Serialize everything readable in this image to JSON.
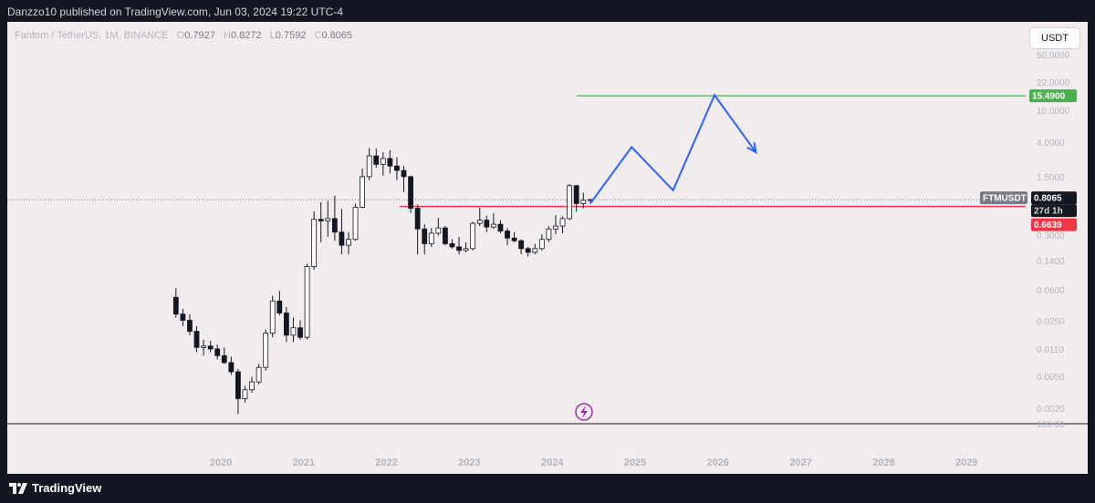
{
  "header": {
    "published": "Danzzo10 published on TradingView.com, Jun 03, 2024 19:22 UTC-4"
  },
  "symbol": {
    "description": "Fantom / TetherUS, 1M, BINANCE",
    "o_label": "O",
    "o_value": "0.7927",
    "h_label": "H",
    "h_value": "0.8272",
    "l_label": "L",
    "l_value": "0.7592",
    "c_label": "C",
    "c_value": "0.8065"
  },
  "currency": "USDT",
  "price_tags": {
    "target": "15.4900",
    "ticker": "FTMUSDT",
    "last": "0.8065",
    "countdown": "27d 1h",
    "support": "0.6639"
  },
  "colors": {
    "target_line": "#4caf50",
    "support_line": "#f23645",
    "projection": "#2962ff",
    "candle_down": "#131722",
    "candle_up": "#ffffff"
  },
  "footer": {
    "brand": "TradingView"
  },
  "chart_data": {
    "type": "candlestick",
    "symbol": "FTMUSDT",
    "interval": "1M",
    "y_scale": "log",
    "y_ticks": [
      "50.0000",
      "22.0000",
      "10.0000",
      "4.0000",
      "1.5000",
      "0.3000",
      "0.1400",
      "0.0600",
      "0.0250",
      "0.0110",
      "0.0050",
      "0.0020",
      "100.00"
    ],
    "x_ticks": [
      "2020",
      "2021",
      "2022",
      "2023",
      "2024",
      "2025",
      "2026",
      "2027",
      "2028",
      "2029"
    ],
    "candles": [
      {
        "t": "2019-06",
        "o": 0.05,
        "h": 0.065,
        "l": 0.028,
        "c": 0.031
      },
      {
        "t": "2019-07",
        "o": 0.031,
        "h": 0.036,
        "l": 0.022,
        "c": 0.026
      },
      {
        "t": "2019-08",
        "o": 0.026,
        "h": 0.031,
        "l": 0.017,
        "c": 0.019
      },
      {
        "t": "2019-09",
        "o": 0.019,
        "h": 0.022,
        "l": 0.0105,
        "c": 0.012
      },
      {
        "t": "2019-10",
        "o": 0.012,
        "h": 0.015,
        "l": 0.0095,
        "c": 0.0125
      },
      {
        "t": "2019-11",
        "o": 0.0125,
        "h": 0.0145,
        "l": 0.0105,
        "c": 0.0115
      },
      {
        "t": "2019-12",
        "o": 0.0115,
        "h": 0.013,
        "l": 0.0085,
        "c": 0.0095
      },
      {
        "t": "2020-01",
        "o": 0.0095,
        "h": 0.012,
        "l": 0.0075,
        "c": 0.0078
      },
      {
        "t": "2020-02",
        "o": 0.0078,
        "h": 0.0092,
        "l": 0.0055,
        "c": 0.006
      },
      {
        "t": "2020-03",
        "o": 0.006,
        "h": 0.0065,
        "l": 0.0018,
        "c": 0.0028
      },
      {
        "t": "2020-04",
        "o": 0.0028,
        "h": 0.004,
        "l": 0.0025,
        "c": 0.0036
      },
      {
        "t": "2020-05",
        "o": 0.0036,
        "h": 0.0052,
        "l": 0.0033,
        "c": 0.0045
      },
      {
        "t": "2020-06",
        "o": 0.0045,
        "h": 0.0075,
        "l": 0.0042,
        "c": 0.0068
      },
      {
        "t": "2020-07",
        "o": 0.0068,
        "h": 0.02,
        "l": 0.0062,
        "c": 0.018
      },
      {
        "t": "2020-08",
        "o": 0.018,
        "h": 0.052,
        "l": 0.016,
        "c": 0.045
      },
      {
        "t": "2020-09",
        "o": 0.045,
        "h": 0.06,
        "l": 0.03,
        "c": 0.032
      },
      {
        "t": "2020-10",
        "o": 0.032,
        "h": 0.038,
        "l": 0.014,
        "c": 0.017
      },
      {
        "t": "2020-11",
        "o": 0.017,
        "h": 0.028,
        "l": 0.014,
        "c": 0.021
      },
      {
        "t": "2020-12",
        "o": 0.021,
        "h": 0.026,
        "l": 0.015,
        "c": 0.016
      },
      {
        "t": "2021-01",
        "o": 0.016,
        "h": 0.13,
        "l": 0.015,
        "c": 0.12
      },
      {
        "t": "2021-02",
        "o": 0.12,
        "h": 0.58,
        "l": 0.11,
        "c": 0.46
      },
      {
        "t": "2021-03",
        "o": 0.46,
        "h": 0.75,
        "l": 0.24,
        "c": 0.44
      },
      {
        "t": "2021-04",
        "o": 0.44,
        "h": 0.78,
        "l": 0.28,
        "c": 0.47
      },
      {
        "t": "2021-05",
        "o": 0.47,
        "h": 0.9,
        "l": 0.25,
        "c": 0.32
      },
      {
        "t": "2021-06",
        "o": 0.32,
        "h": 0.62,
        "l": 0.17,
        "c": 0.22
      },
      {
        "t": "2021-07",
        "o": 0.22,
        "h": 0.32,
        "l": 0.17,
        "c": 0.26
      },
      {
        "t": "2021-08",
        "o": 0.26,
        "h": 0.72,
        "l": 0.25,
        "c": 0.65
      },
      {
        "t": "2021-09",
        "o": 0.65,
        "h": 1.95,
        "l": 0.63,
        "c": 1.55
      },
      {
        "t": "2021-10",
        "o": 1.55,
        "h": 3.5,
        "l": 1.4,
        "c": 2.8
      },
      {
        "t": "2021-11",
        "o": 2.8,
        "h": 3.46,
        "l": 2.0,
        "c": 2.2
      },
      {
        "t": "2021-12",
        "o": 2.2,
        "h": 3.1,
        "l": 1.6,
        "c": 2.6
      },
      {
        "t": "2022-01",
        "o": 2.6,
        "h": 3.3,
        "l": 1.7,
        "c": 2.1
      },
      {
        "t": "2022-02",
        "o": 2.1,
        "h": 2.7,
        "l": 1.4,
        "c": 1.85
      },
      {
        "t": "2022-03",
        "o": 1.85,
        "h": 2.1,
        "l": 1.0,
        "c": 1.55
      },
      {
        "t": "2022-04",
        "o": 1.55,
        "h": 1.6,
        "l": 0.55,
        "c": 0.63
      },
      {
        "t": "2022-05",
        "o": 0.63,
        "h": 0.7,
        "l": 0.17,
        "c": 0.35
      },
      {
        "t": "2022-06",
        "o": 0.35,
        "h": 0.4,
        "l": 0.17,
        "c": 0.23
      },
      {
        "t": "2022-07",
        "o": 0.23,
        "h": 0.36,
        "l": 0.21,
        "c": 0.31
      },
      {
        "t": "2022-08",
        "o": 0.31,
        "h": 0.48,
        "l": 0.29,
        "c": 0.36
      },
      {
        "t": "2022-09",
        "o": 0.36,
        "h": 0.38,
        "l": 0.22,
        "c": 0.23
      },
      {
        "t": "2022-10",
        "o": 0.23,
        "h": 0.26,
        "l": 0.2,
        "c": 0.21
      },
      {
        "t": "2022-11",
        "o": 0.21,
        "h": 0.28,
        "l": 0.17,
        "c": 0.19
      },
      {
        "t": "2022-12",
        "o": 0.19,
        "h": 0.24,
        "l": 0.18,
        "c": 0.2
      },
      {
        "t": "2023-01",
        "o": 0.2,
        "h": 0.43,
        "l": 0.19,
        "c": 0.41
      },
      {
        "t": "2023-02",
        "o": 0.41,
        "h": 0.64,
        "l": 0.38,
        "c": 0.45
      },
      {
        "t": "2023-03",
        "o": 0.45,
        "h": 0.51,
        "l": 0.32,
        "c": 0.37
      },
      {
        "t": "2023-04",
        "o": 0.37,
        "h": 0.55,
        "l": 0.35,
        "c": 0.4
      },
      {
        "t": "2023-05",
        "o": 0.4,
        "h": 0.45,
        "l": 0.31,
        "c": 0.33
      },
      {
        "t": "2023-06",
        "o": 0.33,
        "h": 0.36,
        "l": 0.22,
        "c": 0.27
      },
      {
        "t": "2023-07",
        "o": 0.27,
        "h": 0.32,
        "l": 0.24,
        "c": 0.25
      },
      {
        "t": "2023-08",
        "o": 0.25,
        "h": 0.26,
        "l": 0.17,
        "c": 0.2
      },
      {
        "t": "2023-09",
        "o": 0.2,
        "h": 0.21,
        "l": 0.16,
        "c": 0.18
      },
      {
        "t": "2023-10",
        "o": 0.18,
        "h": 0.23,
        "l": 0.17,
        "c": 0.2
      },
      {
        "t": "2023-11",
        "o": 0.2,
        "h": 0.3,
        "l": 0.19,
        "c": 0.26
      },
      {
        "t": "2023-12",
        "o": 0.26,
        "h": 0.38,
        "l": 0.24,
        "c": 0.35
      },
      {
        "t": "2024-01",
        "o": 0.35,
        "h": 0.52,
        "l": 0.3,
        "c": 0.38
      },
      {
        "t": "2024-02",
        "o": 0.38,
        "h": 0.5,
        "l": 0.31,
        "c": 0.47
      },
      {
        "t": "2024-03",
        "o": 0.47,
        "h": 1.25,
        "l": 0.45,
        "c": 1.2
      },
      {
        "t": "2024-04",
        "o": 1.2,
        "h": 1.22,
        "l": 0.57,
        "c": 0.72
      },
      {
        "t": "2024-05",
        "o": 0.72,
        "h": 0.98,
        "l": 0.63,
        "c": 0.79
      },
      {
        "t": "2024-06",
        "o": 0.7927,
        "h": 0.8272,
        "l": 0.7592,
        "c": 0.8065
      }
    ],
    "horizontal_lines": [
      {
        "name": "target",
        "value": 15.49
      },
      {
        "name": "support",
        "value": 0.6639
      },
      {
        "name": "last-price",
        "value": 0.8065
      }
    ],
    "projection_path": [
      {
        "t": "2024-06",
        "v": 0.72
      },
      {
        "t": "2024-12",
        "v": 3.6
      },
      {
        "t": "2025-06",
        "v": 1.05
      },
      {
        "t": "2025-12",
        "v": 15.8
      },
      {
        "t": "2026-06",
        "v": 3.1
      }
    ]
  }
}
